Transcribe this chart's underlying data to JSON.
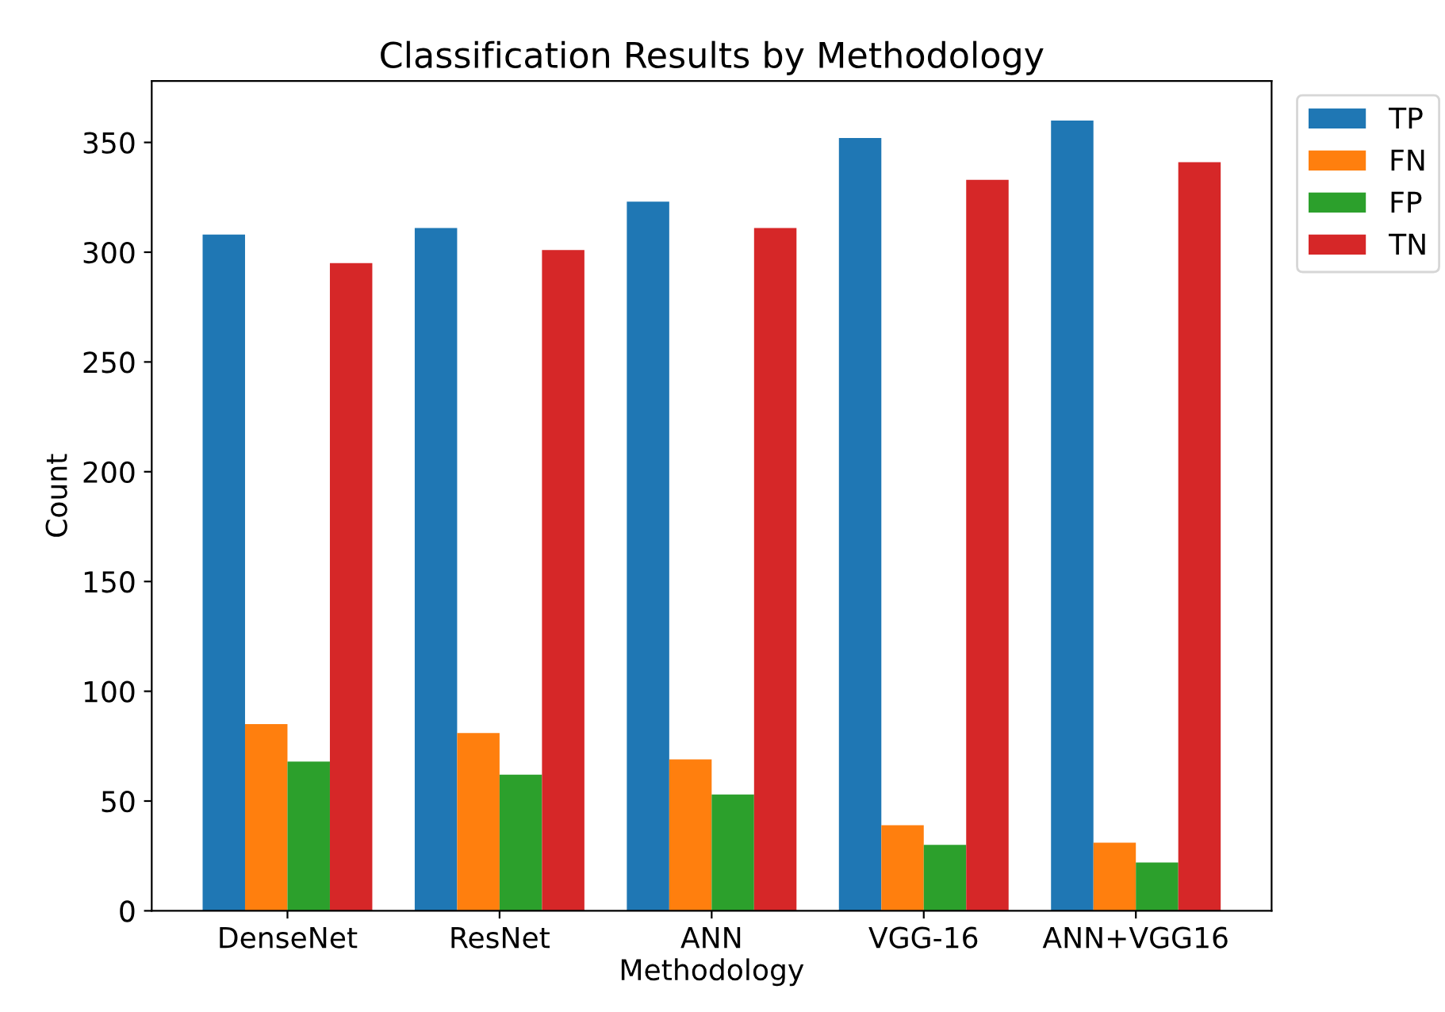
{
  "chart_data": {
    "type": "bar",
    "title": "Classification Results by Methodology",
    "xlabel": "Methodology",
    "ylabel": "Count",
    "categories": [
      "DenseNet",
      "ResNet",
      "ANN",
      "VGG-16",
      "ANN+VGG16"
    ],
    "series": [
      {
        "name": "TP",
        "color": "#1f77b4",
        "values": [
          308,
          311,
          323,
          352,
          360
        ]
      },
      {
        "name": "FN",
        "color": "#ff7f0e",
        "values": [
          85,
          81,
          69,
          39,
          31
        ]
      },
      {
        "name": "FP",
        "color": "#2ca02c",
        "values": [
          68,
          62,
          53,
          30,
          22
        ]
      },
      {
        "name": "TN",
        "color": "#d62728",
        "values": [
          295,
          301,
          311,
          333,
          341
        ]
      }
    ],
    "ylim": [
      0,
      378
    ],
    "yticks": [
      0,
      50,
      100,
      150,
      200,
      250,
      300,
      350
    ],
    "legend": "right",
    "grid": false
  }
}
